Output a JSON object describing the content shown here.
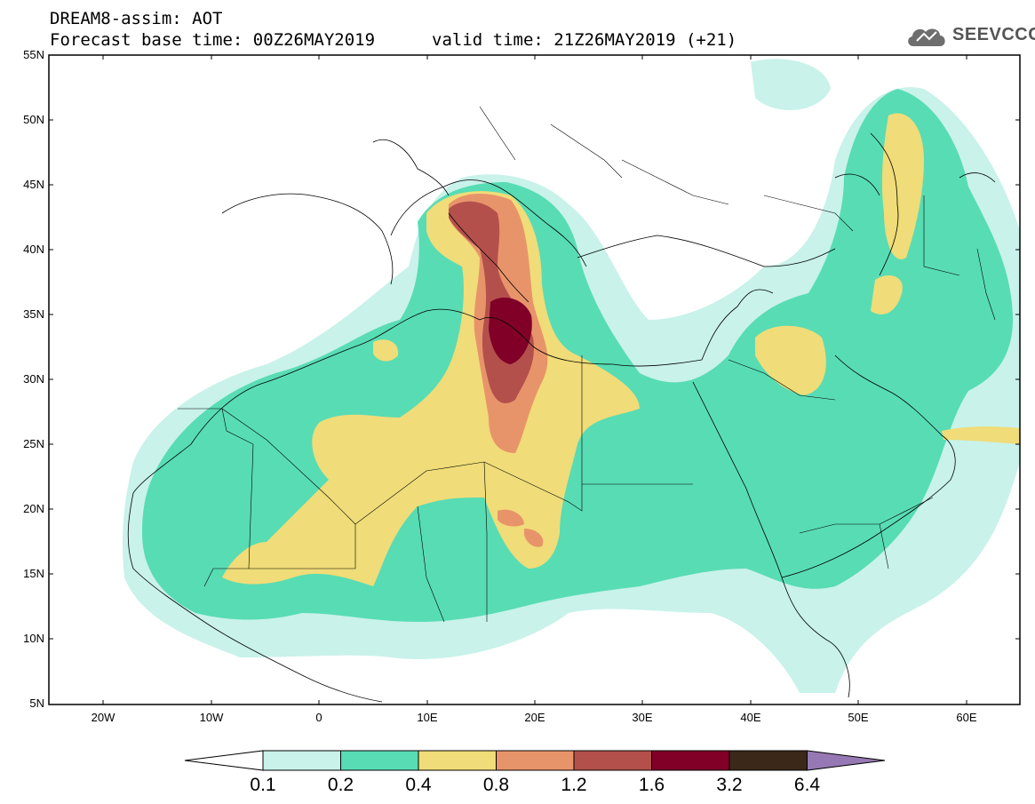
{
  "header": {
    "title": "DREAM8-assim: AOT",
    "base_time": "Forecast base time: 00Z26MAY2019",
    "valid_time": "valid time: 21Z26MAY2019 (+21)"
  },
  "logo": {
    "text": "SEEVCCC",
    "icon": "cloud-icon"
  },
  "map": {
    "lon_labels": [
      "20W",
      "10W",
      "0",
      "10E",
      "20E",
      "30E",
      "40E",
      "50E",
      "60E"
    ],
    "lat_labels": [
      "55N",
      "50N",
      "45N",
      "40N",
      "35N",
      "30N",
      "25N",
      "20N",
      "15N",
      "10N",
      "5N"
    ]
  },
  "colorbar": {
    "labels": [
      "0.1",
      "0.2",
      "0.4",
      "0.8",
      "1.2",
      "1.6",
      "3.2",
      "6.4"
    ],
    "colors": [
      "#c8f2ea",
      "#58dcb4",
      "#f0dc78",
      "#e8946a",
      "#b4504c",
      "#800028",
      "#3c2818",
      "#9678b4"
    ]
  }
}
